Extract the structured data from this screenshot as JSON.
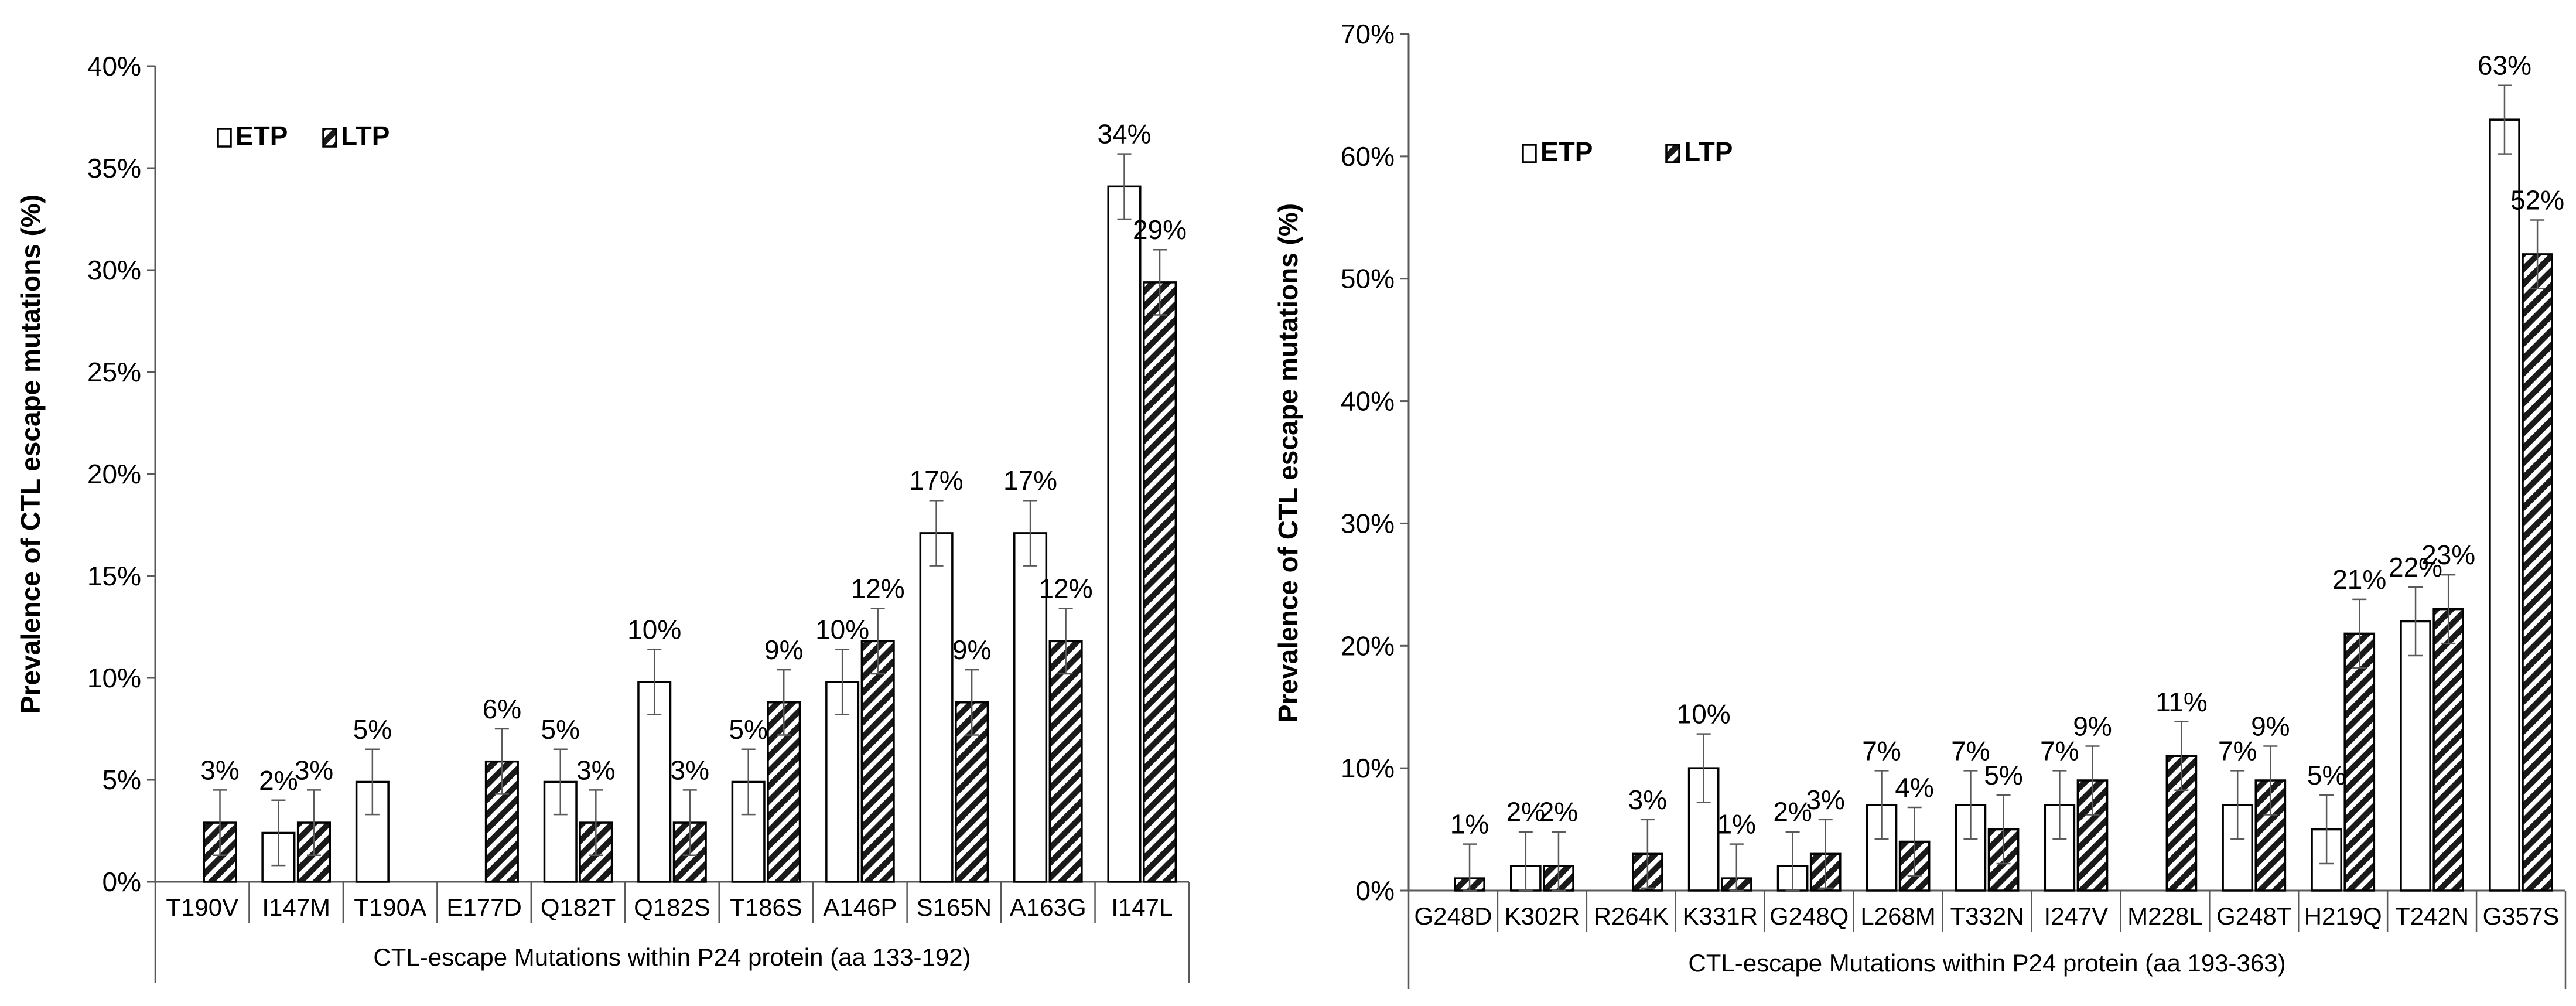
{
  "chart_data": [
    {
      "type": "bar",
      "title": "",
      "xlabel": "CTL-escape Mutations within P24 protein (aa 133-192)",
      "ylabel": "Prevalence of CTL escape mutations (%)",
      "ylim": [
        0,
        40
      ],
      "yticks": [
        "0%",
        "5%",
        "10%",
        "15%",
        "20%",
        "25%",
        "30%",
        "35%",
        "40%"
      ],
      "legend_position": "top-left",
      "legend": [
        "ETP",
        "LTP"
      ],
      "categories": [
        "T190V",
        "I147M",
        "T190A",
        "E177D",
        "Q182T",
        "Q182S",
        "T186S",
        "A146P",
        "S165N",
        "A163G",
        "I147L"
      ],
      "series": [
        {
          "name": "ETP",
          "values": [
            null,
            2.4,
            4.9,
            null,
            4.9,
            9.8,
            4.9,
            9.8,
            17.1,
            17.1,
            34.1
          ],
          "labels": [
            "",
            "2%",
            "5%",
            "",
            "5%",
            "10%",
            "5%",
            "10%",
            "17%",
            "17%",
            "34%"
          ]
        },
        {
          "name": "LTP",
          "values": [
            2.9,
            2.9,
            null,
            5.9,
            2.9,
            2.9,
            8.8,
            11.8,
            8.8,
            11.8,
            29.4
          ],
          "labels": [
            "3%",
            "3%",
            "",
            "6%",
            "3%",
            "3%",
            "9%",
            "12%",
            "9%",
            "12%",
            "29%"
          ]
        }
      ],
      "error_bars": true,
      "grid": false
    },
    {
      "type": "bar",
      "title": "",
      "xlabel": "CTL-escape Mutations within P24 protein (aa 193-363)",
      "ylabel": "Prevalence of CTL escape mutations (%)",
      "ylim": [
        0,
        70
      ],
      "yticks": [
        "0%",
        "10%",
        "20%",
        "30%",
        "40%",
        "50%",
        "60%",
        "70%"
      ],
      "legend_position": "top-left",
      "legend": [
        "ETP",
        "LTP"
      ],
      "categories": [
        "G248D",
        "K302R",
        "R264K",
        "K331R",
        "G248Q",
        "L268M",
        "T332N",
        "I247V",
        "M228L",
        "G248T",
        "H219Q",
        "T242N",
        "G357S"
      ],
      "series": [
        {
          "name": "ETP",
          "values": [
            null,
            2,
            null,
            10,
            2,
            7,
            7,
            7,
            null,
            7,
            5,
            22,
            63
          ],
          "labels": [
            "",
            "2%",
            "",
            "10%",
            "2%",
            "7%",
            "7%",
            "7%",
            "",
            "7%",
            "5%",
            "22%",
            "63%"
          ]
        },
        {
          "name": "LTP",
          "values": [
            1,
            2,
            3,
            1,
            3,
            4,
            5,
            9,
            11,
            9,
            21,
            23,
            52
          ],
          "labels": [
            "1%",
            "2%",
            "3%",
            "1%",
            "3%",
            "4%",
            "5%",
            "9%",
            "11%",
            "9%",
            "21%",
            "23%",
            "52%"
          ]
        }
      ],
      "error_bars": true,
      "grid": false
    }
  ]
}
